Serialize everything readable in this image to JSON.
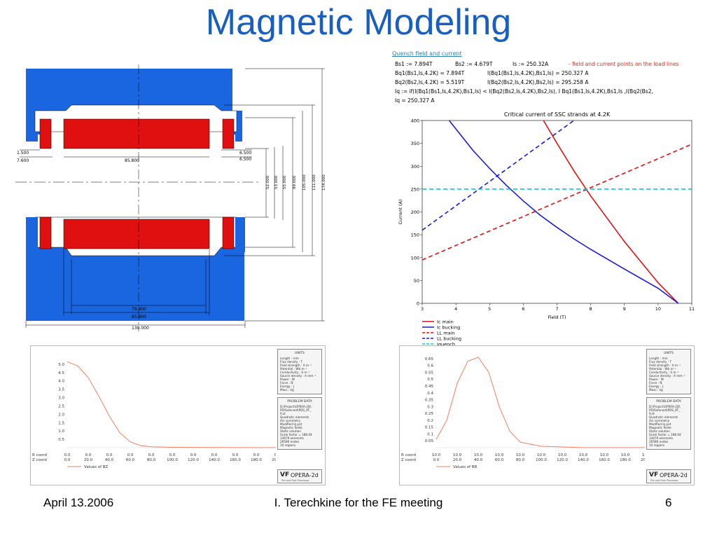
{
  "slide": {
    "title": "Magnetic Modeling",
    "footer_date": "April 13.2006",
    "footer_center": "I. Terechkine for the FE meeting",
    "page_number": "6"
  },
  "colors": {
    "title": "#1a5fbf",
    "iron": "#1a66e0",
    "coil": "#e01010",
    "ic_main": "#e01010",
    "ic_bucking": "#1a1ad0",
    "iquench": "#00d0d0"
  },
  "magnet_drawing": {
    "dims_left": [
      "1.500",
      "7.600"
    ],
    "dim_coil_width": "85.800",
    "dims_right": [
      "6.500",
      "6.500"
    ],
    "dims_vertical": [
      "52.000",
      "53.000",
      "55.000",
      "99.000",
      "105.000",
      "111.000",
      "174.000"
    ],
    "dims_bottom": [
      "79.800",
      "85.800",
      "130.000"
    ]
  },
  "math": {
    "heading": "Quench field and current",
    "line1": {
      "a": "Bs1 := 7.894T",
      "b": "Bs2 := 4.679T",
      "c": "Is := 250.32A",
      "note": "- field and current points on the load lines"
    },
    "line2": {
      "a": "Bq1(Bs1,Is,4.2K) = 7.894T",
      "b": "I(Bq1(Bs1,Is,4.2K),Bs1,Is) = 250.327 A"
    },
    "line3": {
      "a": "Bq2(Bs2,Is,4.2K) = 5.519T",
      "b": "I(Bq2(Bs2,Is,4.2K),Bs2,Is) = 295.258 A"
    },
    "line4": "Iq := if(I(Bq1(Bs1,Is,4.2K),Bs1,Is) < I(Bq2(Bs2,Is,4.2K),Bs2,Is), I Bq1(Bs1,Is,4.2K),Bs1,Is ,I(Bq2(Bs2,",
    "line5": "Iq = 250.327 A"
  },
  "chart_data": [
    {
      "type": "line",
      "title": "Critical current of SSC strands at 4.2K",
      "xlabel": "Field (T)",
      "ylabel": "Current (A)",
      "xlim": [
        3,
        11
      ],
      "ylim": [
        0,
        400
      ],
      "x_ticks": [
        "3",
        "4",
        "5",
        "6",
        "7",
        "8",
        "9",
        "10",
        "11"
      ],
      "y_ticks": [
        "0",
        "50",
        "100",
        "150",
        "200",
        "250",
        "300",
        "350",
        "400"
      ],
      "grid": false,
      "legend_position": "bottom-left",
      "series": [
        {
          "name": "Ic main",
          "style": "solid",
          "color": "#e01010",
          "x": [
            6.6,
            7.0,
            7.5,
            8.0,
            8.5,
            9.0,
            9.5,
            10.0,
            10.6
          ],
          "y": [
            400,
            350,
            290,
            235,
            185,
            135,
            90,
            45,
            0
          ]
        },
        {
          "name": "Ic bucking",
          "style": "solid",
          "color": "#1a1ad0",
          "x": [
            3.8,
            4.5,
            5.0,
            5.5,
            6.0,
            6.5,
            7.0,
            7.5,
            8.0,
            9.0,
            10.0,
            10.6
          ],
          "y": [
            400,
            335,
            295,
            258,
            224,
            193,
            166,
            141,
            118,
            75,
            33,
            0
          ]
        },
        {
          "name": "LL main",
          "style": "dashed",
          "color": "#e01010",
          "x": [
            3,
            11
          ],
          "y": [
            95,
            348
          ]
        },
        {
          "name": "LL bucking",
          "style": "dashed",
          "color": "#1a1ad0",
          "x": [
            3,
            7.5
          ],
          "y": [
            160,
            400
          ]
        },
        {
          "name": "Iquench",
          "style": "dashed",
          "color": "#00d0d0",
          "x": [
            3,
            11
          ],
          "y": [
            250,
            250
          ]
        }
      ]
    },
    {
      "type": "line",
      "legend": "Values of BZ",
      "ylim": [
        0,
        5.5
      ],
      "y_ticks": [
        "0.5",
        "1.0",
        "1.5",
        "2.0",
        "2.5",
        "3.0",
        "3.5",
        "4.0",
        "4.5",
        "5.0"
      ],
      "x_ticks": [
        "0.0",
        "20.0",
        "40.0",
        "60.0",
        "80.0",
        "100.0",
        "120.0",
        "140.0",
        "160.0",
        "180.0",
        "200.0"
      ],
      "r_row": [
        "0.0",
        "0.0",
        "0.0",
        "0.0",
        "0.0",
        "0.0",
        "0.0",
        "0.0",
        "0.0",
        "0.0",
        "0.0"
      ],
      "row_labels": [
        "R coord",
        "Z coord"
      ],
      "series": [
        {
          "name": "Values of BZ",
          "color": "#f08060",
          "x": [
            0,
            10,
            20,
            30,
            40,
            50,
            60,
            70,
            80,
            100,
            140,
            200
          ],
          "y": [
            5.15,
            4.9,
            4.2,
            3.1,
            1.9,
            0.9,
            0.35,
            0.12,
            0.05,
            0.02,
            0.01,
            0.0
          ]
        }
      ]
    },
    {
      "type": "line",
      "legend": "Values of BR",
      "ylim": [
        0,
        0.67
      ],
      "y_ticks": [
        "0.05",
        "0.1",
        "0.15",
        "0.2",
        "0.25",
        "0.3",
        "0.35",
        "0.4",
        "0.45",
        "0.5",
        "0.55",
        "0.6",
        "0.65"
      ],
      "x_ticks": [
        "0.0",
        "20.0",
        "40.0",
        "60.0",
        "80.0",
        "100.0",
        "120.0",
        "140.0",
        "160.0",
        "180.0",
        "200.0"
      ],
      "r_row": [
        "10.0",
        "10.0",
        "10.0",
        "10.0",
        "10.0",
        "10.0",
        "10.0",
        "10.0",
        "10.0",
        "10.0",
        "10.0"
      ],
      "row_labels": [
        "R coord",
        "Z coord"
      ],
      "series": [
        {
          "name": "Values of BR",
          "color": "#f08060",
          "x": [
            0,
            10,
            20,
            30,
            40,
            50,
            60,
            70,
            80,
            100,
            140,
            200
          ],
          "y": [
            0.06,
            0.2,
            0.47,
            0.63,
            0.66,
            0.55,
            0.3,
            0.12,
            0.04,
            0.01,
            0.0,
            0.0
          ]
        }
      ]
    }
  ],
  "opera": {
    "units_title": "UNITS",
    "units": [
      "Length : mm",
      "Flux density : T",
      "Field strength : A m⁻¹",
      "Potential : Wb m⁻¹",
      "Conductivity : S m⁻¹",
      "Source density : A mm⁻²",
      "Power : W",
      "Force : N",
      "Energy : J",
      "Mass : kg"
    ],
    "problem_title": "PROBLEM DATA",
    "problem": [
      "D:\\Project\\OPERA-2D\\",
      "PD\\Solenoid\\PDS_RT_",
      "9.st",
      "Quadratic elements",
      "Axi symmetry",
      "Modified Iq pot",
      "Magnetic fields",
      "Static solution",
      "Scale factor = 188.04",
      "14679 elements",
      "29580 nodes",
      "10 regions"
    ],
    "logo_vf": "VF",
    "logo_name": "OPERA-2d",
    "logo_sub": "Pre and Post Processor"
  }
}
